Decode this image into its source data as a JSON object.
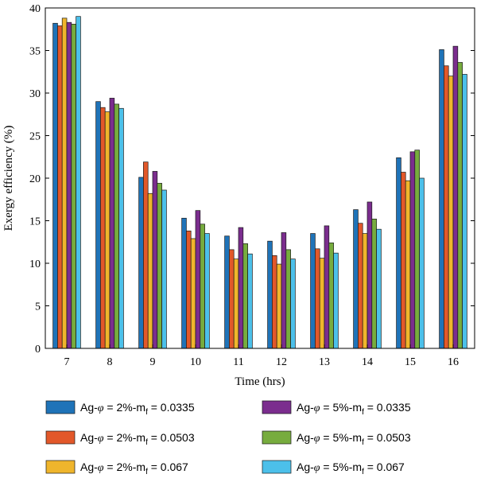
{
  "chart_data": {
    "type": "bar",
    "xlabel": "Time (hrs)",
    "ylabel": "Exergy efficiency (%)",
    "ylim": [
      0,
      40
    ],
    "yticks": [
      0,
      5,
      10,
      15,
      20,
      25,
      30,
      35,
      40
    ],
    "categories": [
      "7",
      "8",
      "9",
      "10",
      "11",
      "12",
      "13",
      "14",
      "15",
      "16"
    ],
    "series": [
      {
        "name_parts": [
          "Ag-",
          "φ",
          " = 2%-m",
          "f",
          " = 0.0335"
        ],
        "color": "#1f73b8",
        "values": [
          38.2,
          29.0,
          20.1,
          15.3,
          13.2,
          12.6,
          13.5,
          16.3,
          22.4,
          35.1
        ]
      },
      {
        "name_parts": [
          "Ag-",
          "φ",
          " = 2%-m",
          "f",
          " = 0.0503"
        ],
        "color": "#e2582a",
        "values": [
          37.9,
          28.3,
          21.9,
          13.8,
          11.6,
          10.9,
          11.7,
          14.7,
          20.7,
          33.2
        ]
      },
      {
        "name_parts": [
          "Ag-",
          "φ",
          " = 2%-m",
          "f",
          " = 0.067"
        ],
        "color": "#efb52c",
        "values": [
          38.8,
          27.8,
          18.2,
          12.9,
          10.5,
          9.9,
          10.6,
          13.5,
          19.7,
          32.0
        ]
      },
      {
        "name_parts": [
          "Ag-",
          "φ",
          " = 5%-m",
          "f",
          " = 0.0335"
        ],
        "color": "#7b2d8e",
        "values": [
          38.3,
          29.4,
          20.8,
          16.2,
          14.2,
          13.6,
          14.4,
          17.2,
          23.1,
          35.5
        ]
      },
      {
        "name_parts": [
          "Ag-",
          "φ",
          " = 5%-m",
          "f",
          " = 0.0503"
        ],
        "color": "#77ac3e",
        "values": [
          38.1,
          28.7,
          19.4,
          14.6,
          12.3,
          11.6,
          12.4,
          15.2,
          23.3,
          33.6
        ]
      },
      {
        "name_parts": [
          "Ag-",
          "φ",
          " = 5%-m",
          "f",
          " = 0.067"
        ],
        "color": "#4cc0ea",
        "values": [
          39.0,
          28.2,
          18.6,
          13.5,
          11.1,
          10.5,
          11.2,
          14.0,
          20.0,
          32.2
        ]
      }
    ]
  }
}
